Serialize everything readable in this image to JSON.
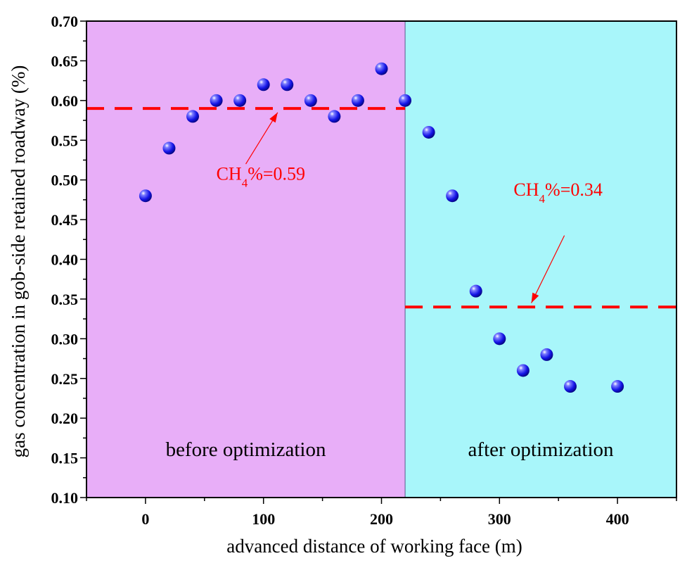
{
  "chart_data": {
    "type": "scatter",
    "xlabel": "advanced distance of working face (m)",
    "ylabel": "gas concentration in gob-side retained roadway (%)",
    "xlim": [
      -50,
      450
    ],
    "ylim": [
      0.1,
      0.7
    ],
    "x_ticks": [
      0,
      100,
      200,
      300,
      400
    ],
    "y_ticks": [
      0.1,
      0.15,
      0.2,
      0.25,
      0.3,
      0.35,
      0.4,
      0.45,
      0.5,
      0.55,
      0.6,
      0.65,
      0.7
    ],
    "x_tick_labels": [
      "0",
      "100",
      "200",
      "300",
      "400"
    ],
    "y_tick_labels": [
      "0.10",
      "0.15",
      "0.20",
      "0.25",
      "0.30",
      "0.35",
      "0.40",
      "0.45",
      "0.50",
      "0.55",
      "0.60",
      "0.65",
      "0.70"
    ],
    "x_minor_step": 50,
    "y_minor_step": 0.025,
    "grid": false,
    "regions": [
      {
        "label": "before optimization",
        "x_from": -50,
        "x_to": 220,
        "color": "#e8aef8"
      },
      {
        "label": "after optimization",
        "x_from": 220,
        "x_to": 450,
        "color": "#a8f6fa"
      }
    ],
    "series": [
      {
        "name": "gas concentration",
        "marker_color": "#1515e8",
        "points": [
          {
            "x": 0,
            "y": 0.48
          },
          {
            "x": 20,
            "y": 0.54
          },
          {
            "x": 40,
            "y": 0.58
          },
          {
            "x": 60,
            "y": 0.6
          },
          {
            "x": 80,
            "y": 0.6
          },
          {
            "x": 100,
            "y": 0.62
          },
          {
            "x": 120,
            "y": 0.62
          },
          {
            "x": 140,
            "y": 0.6
          },
          {
            "x": 160,
            "y": 0.58
          },
          {
            "x": 180,
            "y": 0.6
          },
          {
            "x": 200,
            "y": 0.64
          },
          {
            "x": 220,
            "y": 0.6
          },
          {
            "x": 240,
            "y": 0.56
          },
          {
            "x": 260,
            "y": 0.48
          },
          {
            "x": 280,
            "y": 0.36
          },
          {
            "x": 300,
            "y": 0.3
          },
          {
            "x": 320,
            "y": 0.26
          },
          {
            "x": 340,
            "y": 0.28
          },
          {
            "x": 360,
            "y": 0.24
          },
          {
            "x": 400,
            "y": 0.24
          }
        ]
      }
    ],
    "mean_lines": [
      {
        "y": 0.59,
        "x_from": -50,
        "x_to": 220,
        "color": "#ff0000",
        "label_main": "CH",
        "label_sub": "4",
        "label_rest": "%=0.59",
        "label_x": 60,
        "label_y": 0.5,
        "arrow_from": [
          85,
          0.52
        ],
        "arrow_to": [
          112,
          0.585
        ]
      },
      {
        "y": 0.34,
        "x_from": 220,
        "x_to": 450,
        "color": "#ff0000",
        "label_main": "CH",
        "label_sub": "4",
        "label_rest": "%=0.34",
        "label_x": 312,
        "label_y": 0.48,
        "arrow_from": [
          355,
          0.43
        ],
        "arrow_to": [
          327,
          0.345
        ]
      }
    ]
  }
}
